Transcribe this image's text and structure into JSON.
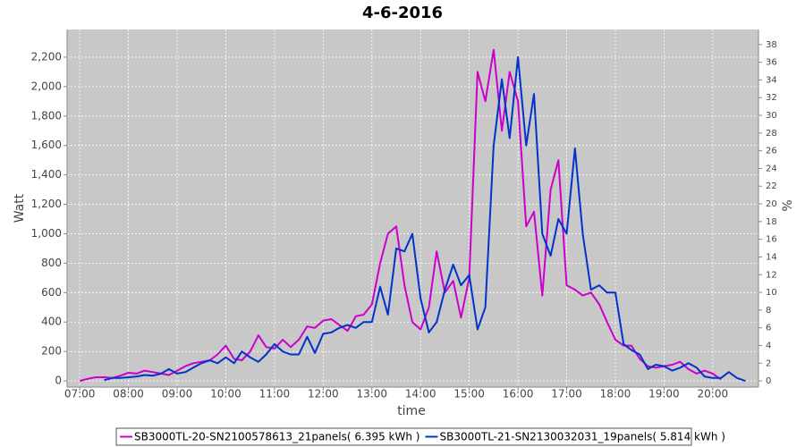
{
  "chart_data": {
    "type": "line",
    "title": "4-6-2016",
    "x_label": "time",
    "y_label": "Watt",
    "y2_label": "%",
    "x": [
      7,
      7.17,
      7.33,
      7.5,
      7.67,
      7.83,
      8,
      8.17,
      8.33,
      8.5,
      8.67,
      8.83,
      9,
      9.17,
      9.33,
      9.5,
      9.67,
      9.83,
      10,
      10.17,
      10.33,
      10.5,
      10.67,
      10.83,
      11,
      11.17,
      11.33,
      11.5,
      11.67,
      11.83,
      12,
      12.17,
      12.33,
      12.5,
      12.67,
      12.83,
      13,
      13.17,
      13.33,
      13.5,
      13.67,
      13.83,
      14,
      14.17,
      14.33,
      14.5,
      14.67,
      14.83,
      15,
      15.17,
      15.33,
      15.5,
      15.67,
      15.83,
      16,
      16.17,
      16.33,
      16.5,
      16.67,
      16.83,
      17,
      17.17,
      17.33,
      17.5,
      17.67,
      17.83,
      18,
      18.17,
      18.33,
      18.5,
      18.67,
      18.83,
      19,
      19.17,
      19.33,
      19.5,
      19.67,
      19.83,
      20,
      20.17,
      20.33,
      20.5,
      20.67
    ],
    "series": [
      {
        "name": "SB3000TL-20-SN2100578613_21panels( 6.395 kWh )",
        "color": "#cc00cc",
        "values": [
          0,
          15,
          25,
          25,
          20,
          35,
          55,
          50,
          70,
          60,
          50,
          40,
          70,
          100,
          120,
          130,
          140,
          180,
          240,
          150,
          140,
          200,
          310,
          230,
          220,
          280,
          230,
          280,
          370,
          360,
          410,
          420,
          380,
          340,
          440,
          450,
          520,
          800,
          1000,
          1050,
          650,
          400,
          350,
          500,
          880,
          600,
          680,
          430,
          700,
          2100,
          1900,
          2250,
          1700,
          2100,
          1900,
          1050,
          1150,
          580,
          1300,
          1500,
          650,
          620,
          580,
          600,
          520,
          400,
          280,
          240,
          240,
          150,
          100,
          90,
          100,
          110,
          130,
          80,
          50,
          70,
          50,
          10,
          null,
          null,
          null
        ]
      },
      {
        "name": "SB3000TL-21-SN2130032031_19panels( 5.814 kWh )",
        "color": "#0033cc",
        "values": [
          null,
          null,
          null,
          5,
          20,
          20,
          25,
          30,
          40,
          35,
          50,
          80,
          50,
          60,
          90,
          120,
          140,
          120,
          160,
          120,
          200,
          160,
          130,
          180,
          250,
          200,
          180,
          180,
          300,
          190,
          320,
          330,
          360,
          380,
          360,
          400,
          400,
          640,
          450,
          900,
          880,
          1000,
          560,
          330,
          400,
          620,
          790,
          650,
          720,
          350,
          500,
          1600,
          2050,
          1650,
          2200,
          1600,
          1950,
          1000,
          850,
          1100,
          1000,
          1580,
          1000,
          620,
          650,
          600,
          600,
          250,
          210,
          180,
          80,
          110,
          100,
          70,
          90,
          120,
          90,
          30,
          20,
          20,
          60,
          20,
          0
        ]
      }
    ],
    "xlim": [
      6.74,
      20.94
    ],
    "xticks": [
      {
        "value": 7,
        "label": "07:00"
      },
      {
        "value": 8,
        "label": "08:00"
      },
      {
        "value": 9,
        "label": "09:00"
      },
      {
        "value": 10,
        "label": "10:00"
      },
      {
        "value": 11,
        "label": "11:00"
      },
      {
        "value": 12,
        "label": "12:00"
      },
      {
        "value": 13,
        "label": "13:00"
      },
      {
        "value": 14,
        "label": "14:00"
      },
      {
        "value": 15,
        "label": "15:00"
      },
      {
        "value": 16,
        "label": "16:00"
      },
      {
        "value": 17,
        "label": "17:00"
      },
      {
        "value": 18,
        "label": "18:00"
      },
      {
        "value": 19,
        "label": "19:00"
      },
      {
        "value": 20,
        "label": "20:00"
      }
    ],
    "ylim": [
      -42,
      2388
    ],
    "yticks": [
      0,
      200,
      400,
      600,
      800,
      {
        "value": 1000,
        "label": "1,000"
      },
      {
        "value": 1200,
        "label": "1,200"
      },
      {
        "value": 1400,
        "label": "1,400"
      },
      {
        "value": 1600,
        "label": "1,600"
      },
      {
        "value": 1800,
        "label": "1,800"
      },
      {
        "value": 2000,
        "label": "2,000"
      },
      {
        "value": 2200,
        "label": "2,200"
      }
    ],
    "y2lim": [
      -0.7,
      39.7
    ],
    "y2ticks": [
      0,
      2,
      4,
      6,
      8,
      10,
      12,
      14,
      16,
      18,
      20,
      22,
      24,
      26,
      28,
      30,
      32,
      34,
      36,
      38
    ],
    "grid": true
  }
}
